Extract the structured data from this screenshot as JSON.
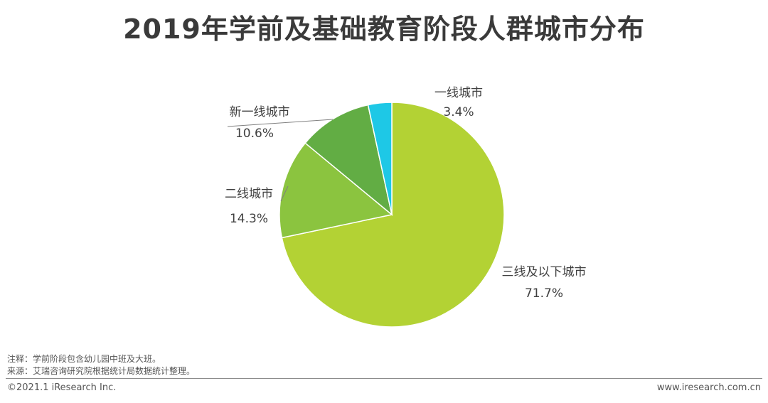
{
  "title": "2019年学前及基础教育阶段人群城市分布",
  "chart_data": {
    "type": "pie",
    "title": "2019年学前及基础教育阶段人群城市分布",
    "slices": [
      {
        "label": "三线及以下城市",
        "value": 71.7,
        "display": "71.7%",
        "color": "#b3d234"
      },
      {
        "label": "二线城市",
        "value": 14.3,
        "display": "14.3%",
        "color": "#8bc43f"
      },
      {
        "label": "新一线城市",
        "value": 10.6,
        "display": "10.6%",
        "color": "#62ad44"
      },
      {
        "label": "一线城市",
        "value": 3.4,
        "display": "3.4%",
        "color": "#1ec8e6"
      }
    ],
    "start": "12 o'clock",
    "direction": "clockwise"
  },
  "notes": {
    "note": "注释：学前阶段包含幼儿园中班及大班。",
    "source": "来源：艾瑞咨询研究院根据统计局数据统计整理。"
  },
  "footer": {
    "copyright": "©2021.1 iResearch Inc.",
    "website": "www.iresearch.com.cn"
  }
}
